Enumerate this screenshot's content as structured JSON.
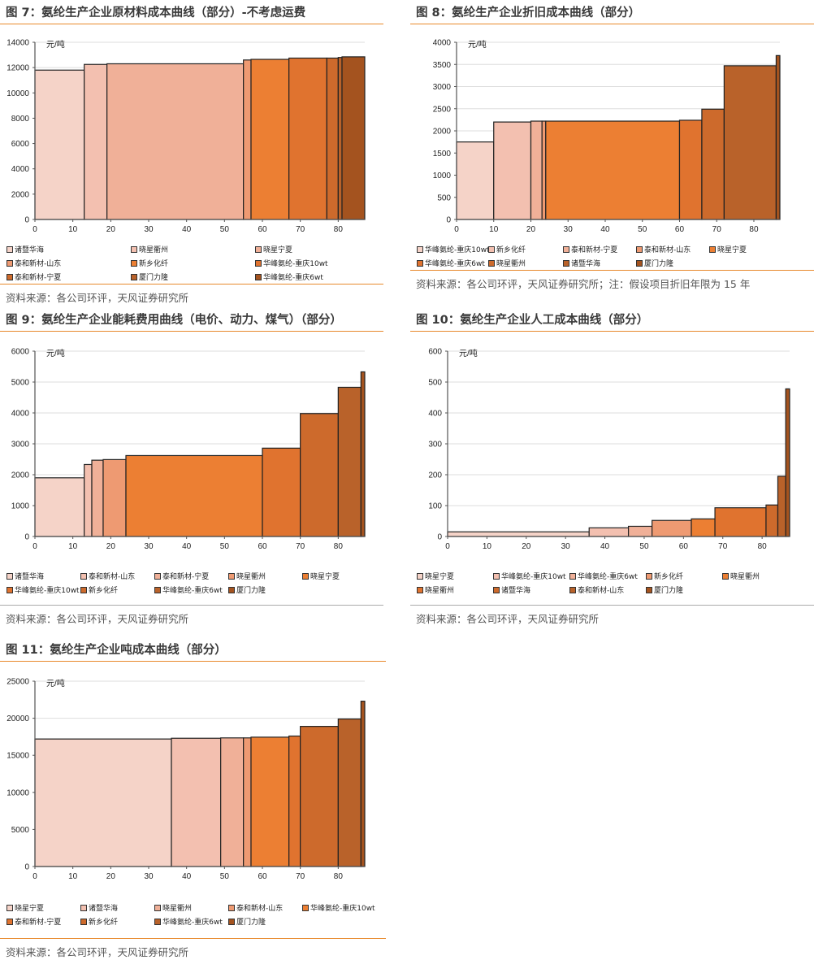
{
  "colors": [
    "#f5d3c8",
    "#f3c0b0",
    "#f0b098",
    "#ee9a72",
    "#ec7f33",
    "#e0732f",
    "#cd6a2c",
    "#b9622a",
    "#a4531f"
  ],
  "chart_data": [
    {
      "type": "bar",
      "id": "fig7",
      "title": "图 7：氨纶生产企业原材料成本曲线（部分）-不考虑运费",
      "unit": "元/吨",
      "xlim": [
        0,
        87
      ],
      "ylim": [
        0,
        14000
      ],
      "xticks": [
        0,
        10,
        20,
        30,
        40,
        50,
        60,
        70,
        80
      ],
      "yticks": [
        0,
        2000,
        4000,
        6000,
        8000,
        10000,
        12000,
        14000
      ],
      "bars": [
        {
          "x0": 0,
          "x1": 13,
          "y": 11800
        },
        {
          "x0": 13,
          "x1": 19,
          "y": 12250
        },
        {
          "x0": 19,
          "x1": 55,
          "y": 12300
        },
        {
          "x0": 55,
          "x1": 57,
          "y": 12600
        },
        {
          "x0": 57,
          "x1": 67,
          "y": 12650
        },
        {
          "x0": 67,
          "x1": 77,
          "y": 12750
        },
        {
          "x0": 77,
          "x1": 80,
          "y": 12750
        },
        {
          "x0": 80,
          "x1": 81,
          "y": 12800
        },
        {
          "x0": 81,
          "x1": 87,
          "y": 12850
        }
      ],
      "legend": [
        "诸暨华海",
        "晓星衢州",
        "晓星宁夏",
        "泰和新材-山东",
        "新乡化纤",
        "华峰氨纶-重庆10wt",
        "泰和新材-宁夏",
        "厦门力隆",
        "华峰氨纶-重庆6wt"
      ],
      "source": "资料来源：各公司环评，天风证券研究所"
    },
    {
      "type": "bar",
      "id": "fig8",
      "title": "图 8：氨纶生产企业折旧成本曲线（部分）",
      "unit": "元/吨",
      "xlim": [
        0,
        87
      ],
      "ylim": [
        0,
        4000
      ],
      "xticks": [
        0,
        10,
        20,
        30,
        40,
        50,
        60,
        70,
        80
      ],
      "yticks": [
        0,
        500,
        1000,
        1500,
        2000,
        2500,
        3000,
        3500,
        4000
      ],
      "bars": [
        {
          "x0": 0,
          "x1": 10,
          "y": 1750
        },
        {
          "x0": 10,
          "x1": 20,
          "y": 2200
        },
        {
          "x0": 20,
          "x1": 23,
          "y": 2220
        },
        {
          "x0": 23,
          "x1": 24,
          "y": 2220
        },
        {
          "x0": 24,
          "x1": 60,
          "y": 2220
        },
        {
          "x0": 60,
          "x1": 66,
          "y": 2240
        },
        {
          "x0": 66,
          "x1": 72,
          "y": 2490
        },
        {
          "x0": 72,
          "x1": 86,
          "y": 3470
        },
        {
          "x0": 86,
          "x1": 87,
          "y": 3700
        }
      ],
      "legend": [
        "华峰氨纶-重庆10wt",
        "新乡化纤",
        "泰和新材-宁夏",
        "泰和新材-山东",
        "晓星宁夏",
        "华峰氨纶-重庆6wt",
        "晓星衢州",
        "诸暨华海",
        "厦门力隆"
      ],
      "source": "资料来源：各公司环评，天风证券研究所；注：假设项目折旧年限为 15 年"
    },
    {
      "type": "bar",
      "id": "fig9",
      "title": "图 9：氨纶生产企业能耗费用曲线（电价、动力、煤气）（部分）",
      "unit": "元/吨",
      "xlim": [
        0,
        87
      ],
      "ylim": [
        0,
        6000
      ],
      "xticks": [
        0,
        10,
        20,
        30,
        40,
        50,
        60,
        70,
        80
      ],
      "yticks": [
        0,
        1000,
        2000,
        3000,
        4000,
        5000,
        6000
      ],
      "bars": [
        {
          "x0": 0,
          "x1": 13,
          "y": 1900
        },
        {
          "x0": 13,
          "x1": 15,
          "y": 2330
        },
        {
          "x0": 15,
          "x1": 18,
          "y": 2470
        },
        {
          "x0": 18,
          "x1": 24,
          "y": 2490
        },
        {
          "x0": 24,
          "x1": 60,
          "y": 2620
        },
        {
          "x0": 60,
          "x1": 70,
          "y": 2860
        },
        {
          "x0": 70,
          "x1": 80,
          "y": 3980
        },
        {
          "x0": 80,
          "x1": 86,
          "y": 4830
        },
        {
          "x0": 86,
          "x1": 87,
          "y": 5330
        }
      ],
      "legend": [
        "诸暨华海",
        "泰和新材-山东",
        "泰和新材-宁夏",
        "晓星衢州",
        "晓星宁夏",
        "华峰氨纶-重庆10wt",
        "新乡化纤",
        "华峰氨纶-重庆6wt",
        "厦门力隆"
      ],
      "source": "资料来源：各公司环评，天风证券研究所"
    },
    {
      "type": "bar",
      "id": "fig10",
      "title": "图 10：氨纶生产企业人工成本曲线（部分）",
      "unit": "元/吨",
      "xlim": [
        0,
        87
      ],
      "ylim": [
        0,
        600
      ],
      "xticks": [
        0,
        10,
        20,
        30,
        40,
        50,
        60,
        70,
        80
      ],
      "yticks": [
        0,
        100,
        200,
        300,
        400,
        500,
        600
      ],
      "bars": [
        {
          "x0": 0,
          "x1": 36,
          "y": 15
        },
        {
          "x0": 36,
          "x1": 46,
          "y": 28
        },
        {
          "x0": 46,
          "x1": 52,
          "y": 33
        },
        {
          "x0": 52,
          "x1": 62,
          "y": 52
        },
        {
          "x0": 62,
          "x1": 68,
          "y": 57
        },
        {
          "x0": 68,
          "x1": 81,
          "y": 93
        },
        {
          "x0": 81,
          "x1": 84,
          "y": 102
        },
        {
          "x0": 84,
          "x1": 86,
          "y": 195
        },
        {
          "x0": 86,
          "x1": 87,
          "y": 478
        }
      ],
      "legend": [
        "晓星宁夏",
        "华峰氨纶-重庆10wt",
        "华峰氨纶-重庆6wt",
        "新乡化纤",
        "晓星衢州",
        "晓星衢州",
        "诸暨华海",
        "泰和新材-山东",
        "厦门力隆"
      ],
      "source": "资料来源：各公司环评，天风证券研究所"
    },
    {
      "type": "bar",
      "id": "fig11",
      "title": "图 11：氨纶生产企业吨成本曲线（部分）",
      "unit": "元/吨",
      "xlim": [
        0,
        87
      ],
      "ylim": [
        0,
        25000
      ],
      "xticks": [
        0,
        10,
        20,
        30,
        40,
        50,
        60,
        70,
        80
      ],
      "yticks": [
        0,
        5000,
        10000,
        15000,
        20000,
        25000
      ],
      "bars": [
        {
          "x0": 0,
          "x1": 36,
          "y": 17200
        },
        {
          "x0": 36,
          "x1": 49,
          "y": 17300
        },
        {
          "x0": 49,
          "x1": 55,
          "y": 17350
        },
        {
          "x0": 55,
          "x1": 57,
          "y": 17350
        },
        {
          "x0": 57,
          "x1": 67,
          "y": 17450
        },
        {
          "x0": 67,
          "x1": 70,
          "y": 17600
        },
        {
          "x0": 70,
          "x1": 80,
          "y": 18900
        },
        {
          "x0": 80,
          "x1": 86,
          "y": 19900
        },
        {
          "x0": 86,
          "x1": 87,
          "y": 22300
        }
      ],
      "legend": [
        "晓星宁夏",
        "诸暨华海",
        "晓星衢州",
        "泰和新材-山东",
        "华峰氨纶-重庆10wt",
        "泰和新材-宁夏",
        "新乡化纤",
        "华峰氨纶-重庆6wt",
        "厦门力隆"
      ],
      "source": "资料来源：各公司环评，天风证券研究所"
    }
  ]
}
